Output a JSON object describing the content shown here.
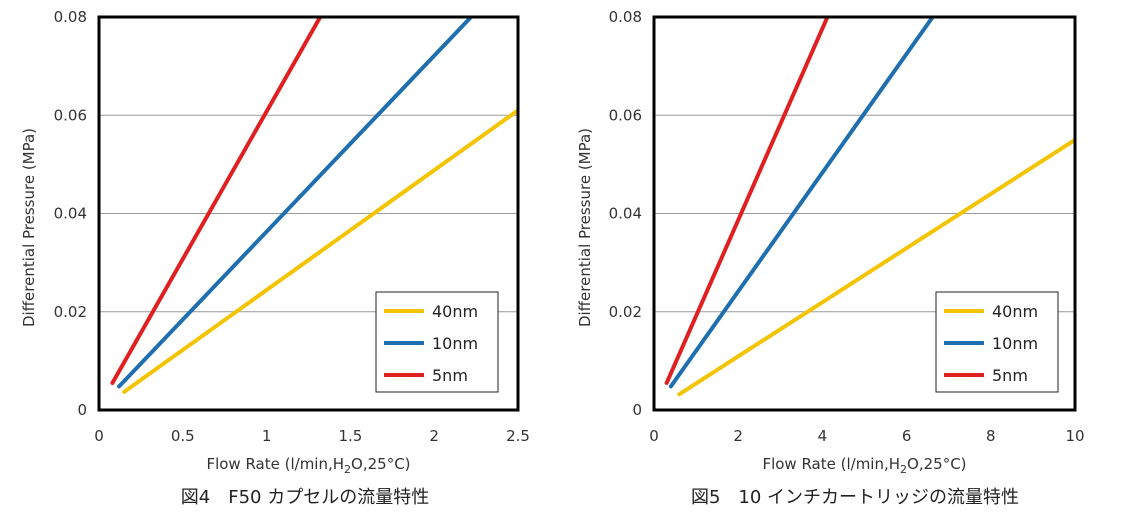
{
  "chart_data": [
    {
      "type": "line",
      "caption": "図4　F50 カプセルの流量特性",
      "xlabel_main": "Flow Rate (l/min,H",
      "xlabel_sub": "2",
      "xlabel_tail": "O,25°C)",
      "ylabel": "Differential Pressure (MPa)",
      "xlim": [
        0,
        2.5
      ],
      "ylim": [
        0,
        0.08
      ],
      "xticks": [
        "0",
        "0.5",
        "1",
        "1.5",
        "2",
        "2.5"
      ],
      "xtick_values": [
        0,
        0.5,
        1,
        1.5,
        2,
        2.5
      ],
      "yticks": [
        "0",
        "0.02",
        "0.04",
        "0.06",
        "0.08"
      ],
      "ytick_values": [
        0,
        0.02,
        0.04,
        0.06,
        0.08
      ],
      "grid": "horizontal",
      "legend_position": "bottom-right",
      "series": [
        {
          "name": "40nm",
          "color": "#f5c400",
          "x": [
            0.15,
            2.5
          ],
          "y": [
            0.0037,
            0.061
          ]
        },
        {
          "name": "10nm",
          "color": "#1f6fb0",
          "x": [
            0.12,
            2.22
          ],
          "y": [
            0.0048,
            0.08
          ]
        },
        {
          "name": "5nm",
          "color": "#e02020",
          "x": [
            0.08,
            1.32
          ],
          "y": [
            0.0055,
            0.08
          ]
        }
      ]
    },
    {
      "type": "line",
      "caption": "図5　10 インチカートリッジの流量特性",
      "xlabel_main": "Flow Rate (l/min,H",
      "xlabel_sub": "2",
      "xlabel_tail": "O,25°C)",
      "ylabel": "Differential Pressure (MPa)",
      "xlim": [
        0,
        10
      ],
      "ylim": [
        0,
        0.08
      ],
      "xticks": [
        "0",
        "2",
        "4",
        "6",
        "8",
        "10"
      ],
      "xtick_values": [
        0,
        2,
        4,
        6,
        8,
        10
      ],
      "yticks": [
        "0",
        "0.02",
        "0.04",
        "0.06",
        "0.08"
      ],
      "ytick_values": [
        0,
        0.02,
        0.04,
        0.06,
        0.08
      ],
      "grid": "horizontal",
      "legend_position": "bottom-right",
      "series": [
        {
          "name": "40nm",
          "color": "#f5c400",
          "x": [
            0.6,
            10
          ],
          "y": [
            0.0032,
            0.055
          ]
        },
        {
          "name": "10nm",
          "color": "#1f6fb0",
          "x": [
            0.4,
            6.62
          ],
          "y": [
            0.0048,
            0.08
          ]
        },
        {
          "name": "5nm",
          "color": "#e02020",
          "x": [
            0.3,
            4.12
          ],
          "y": [
            0.0055,
            0.08
          ]
        }
      ]
    }
  ]
}
